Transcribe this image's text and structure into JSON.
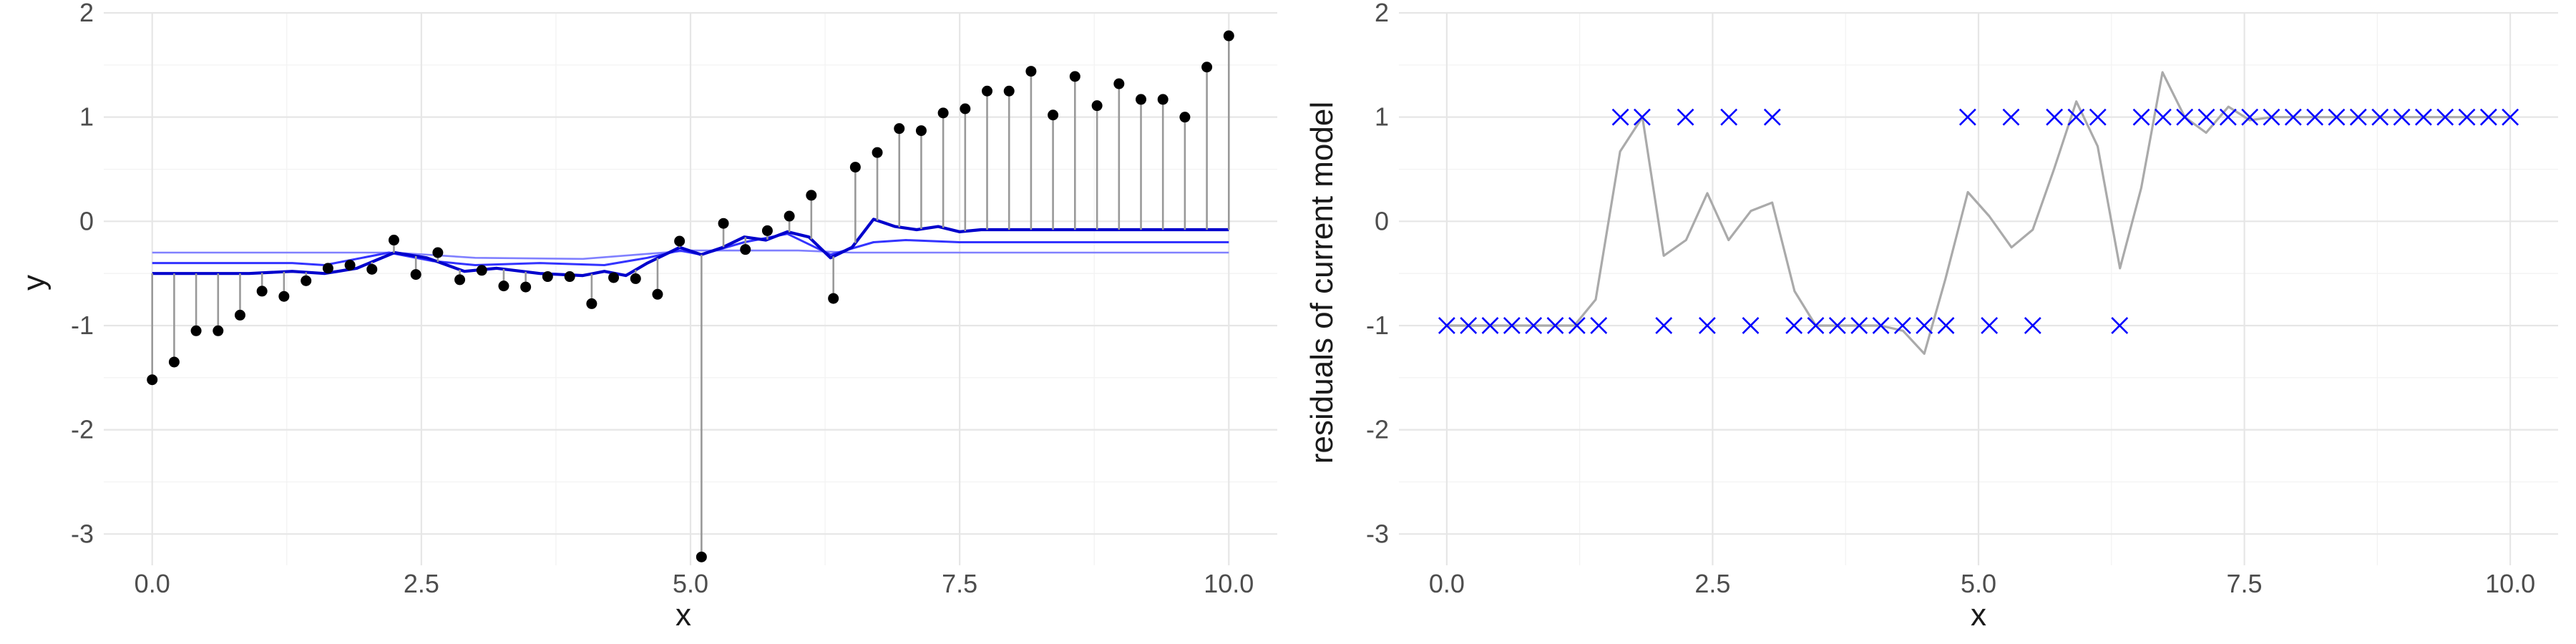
{
  "chart_data": [
    {
      "type": "scatter",
      "xlabel": "x",
      "ylabel": "y",
      "xlim": [
        0,
        10
      ],
      "ylim": [
        -3.3,
        2
      ],
      "x_ticks": [
        0,
        2.5,
        5,
        7.5,
        10
      ],
      "x_tick_labels": [
        "0.0",
        "2.5",
        "5.0",
        "7.5",
        "10.0"
      ],
      "y_ticks": [
        -3,
        -2,
        -1,
        0,
        1,
        2
      ],
      "y_tick_labels": [
        "-3",
        "-2",
        "-1",
        "0",
        "1",
        "2"
      ],
      "grid": true,
      "colors": {
        "points": "#000000",
        "segments": "#999999",
        "fit_dark": "#0000cc",
        "fit_mid": "#3333ff",
        "fit_light": "#8080ff"
      },
      "x": [
        0.0,
        0.204,
        0.408,
        0.612,
        0.816,
        1.02,
        1.224,
        1.429,
        1.633,
        1.837,
        2.041,
        2.245,
        2.449,
        2.653,
        2.857,
        3.061,
        3.265,
        3.469,
        3.673,
        3.878,
        4.082,
        4.286,
        4.49,
        4.694,
        4.898,
        5.102,
        5.306,
        5.51,
        5.714,
        5.918,
        6.122,
        6.327,
        6.531,
        6.735,
        6.939,
        7.143,
        7.347,
        7.551,
        7.755,
        7.959,
        8.163,
        8.367,
        8.571,
        8.776,
        8.98,
        9.184,
        9.388,
        9.592,
        9.796,
        10.0
      ],
      "y": [
        -1.52,
        -1.35,
        -1.05,
        -1.05,
        -0.9,
        -0.67,
        -0.72,
        -0.57,
        -0.45,
        -0.42,
        -0.46,
        -0.18,
        -0.51,
        -0.3,
        -0.56,
        -0.47,
        -0.62,
        -0.63,
        -0.53,
        -0.53,
        -0.79,
        -0.54,
        -0.55,
        -0.7,
        -0.19,
        -3.22,
        -0.02,
        -0.27,
        -0.09,
        0.05,
        0.25,
        -0.74,
        0.52,
        0.66,
        0.89,
        0.87,
        1.04,
        1.08,
        1.25,
        1.25,
        1.44,
        1.02,
        1.39,
        1.11,
        1.32,
        1.17,
        1.17,
        1.0,
        1.48,
        1.78
      ],
      "series": [
        {
          "name": "",
          "color": "#0000cc",
          "x": [
            0.0,
            0.9,
            1.3,
            1.6,
            1.9,
            2.25,
            2.55,
            2.9,
            3.2,
            3.6,
            4.0,
            4.2,
            4.4,
            4.6,
            4.9,
            5.1,
            5.3,
            5.5,
            5.7,
            5.9,
            6.1,
            6.3,
            6.5,
            6.7,
            6.9,
            7.1,
            7.3,
            7.5,
            7.7,
            8.0,
            8.5,
            9.0,
            10.0
          ],
          "y": [
            -0.5,
            -0.5,
            -0.48,
            -0.5,
            -0.45,
            -0.3,
            -0.35,
            -0.48,
            -0.45,
            -0.5,
            -0.52,
            -0.48,
            -0.52,
            -0.4,
            -0.25,
            -0.32,
            -0.25,
            -0.15,
            -0.18,
            -0.1,
            -0.15,
            -0.35,
            -0.25,
            0.02,
            -0.05,
            -0.08,
            -0.05,
            -0.1,
            -0.08,
            -0.08,
            -0.08,
            -0.08,
            -0.08
          ]
        },
        {
          "name": "",
          "color": "#3333ff",
          "x": [
            0.0,
            1.3,
            1.6,
            2.2,
            2.6,
            3.0,
            3.6,
            4.2,
            4.6,
            4.9,
            5.1,
            5.5,
            5.9,
            6.3,
            6.7,
            7.0,
            7.5,
            8.0,
            10.0
          ],
          "y": [
            -0.4,
            -0.4,
            -0.42,
            -0.3,
            -0.38,
            -0.42,
            -0.4,
            -0.42,
            -0.35,
            -0.28,
            -0.32,
            -0.2,
            -0.12,
            -0.32,
            -0.2,
            -0.18,
            -0.2,
            -0.2,
            -0.2
          ]
        },
        {
          "name": "",
          "color": "#8080ff",
          "x": [
            0.0,
            1.5,
            2.25,
            3.0,
            4.0,
            4.5,
            5.0,
            5.5,
            6.0,
            6.5,
            7.0,
            7.5,
            10.0
          ],
          "y": [
            -0.3,
            -0.3,
            -0.3,
            -0.35,
            -0.36,
            -0.32,
            -0.28,
            -0.28,
            -0.28,
            -0.3,
            -0.3,
            -0.3,
            -0.3
          ]
        }
      ]
    },
    {
      "type": "scatter",
      "xlabel": "x",
      "ylabel": "residuals of current model",
      "xlim": [
        0,
        10
      ],
      "ylim": [
        -3.3,
        2
      ],
      "x_ticks": [
        0,
        2.5,
        5,
        7.5,
        10
      ],
      "x_tick_labels": [
        "0.0",
        "2.5",
        "5.0",
        "7.5",
        "10.0"
      ],
      "y_ticks": [
        -3,
        -2,
        -1,
        0,
        1,
        2
      ],
      "y_tick_labels": [
        "-3",
        "-2",
        "-1",
        "0",
        "1",
        "2"
      ],
      "grid": true,
      "colors": {
        "markers": "#0000ff",
        "line": "#aaaaaa"
      },
      "x": [
        0.0,
        0.204,
        0.408,
        0.612,
        0.816,
        1.02,
        1.224,
        1.429,
        1.633,
        1.837,
        2.041,
        2.245,
        2.449,
        2.653,
        2.857,
        3.061,
        3.265,
        3.469,
        3.673,
        3.878,
        4.082,
        4.286,
        4.49,
        4.694,
        4.898,
        5.102,
        5.306,
        5.51,
        5.714,
        5.918,
        6.122,
        6.327,
        6.531,
        6.735,
        6.939,
        7.143,
        7.347,
        7.551,
        7.755,
        7.959,
        8.163,
        8.367,
        8.571,
        8.776,
        8.98,
        9.184,
        9.388,
        9.592,
        9.796,
        10.0
      ],
      "y": [
        -1,
        -1,
        -1,
        -1,
        -1,
        -1,
        -1,
        -1,
        1,
        1,
        -1,
        1,
        -1,
        1,
        -1,
        1,
        -1,
        -1,
        -1,
        -1,
        -1,
        -1,
        -1,
        -1,
        1,
        -1,
        1,
        -1,
        1,
        1,
        1,
        -1,
        1,
        1,
        1,
        1,
        1,
        1,
        1,
        1,
        1,
        1,
        1,
        1,
        1,
        1,
        1,
        1,
        1,
        1
      ],
      "series": [
        {
          "name": "",
          "color": "#aaaaaa",
          "x": [
            0.0,
            0.2,
            0.4,
            0.6,
            0.8,
            1.0,
            1.2,
            1.4,
            1.63,
            1.84,
            2.04,
            2.25,
            2.45,
            2.65,
            2.86,
            3.06,
            3.27,
            3.47,
            3.67,
            3.88,
            4.08,
            4.29,
            4.49,
            4.69,
            4.9,
            5.1,
            5.31,
            5.51,
            5.71,
            5.92,
            6.12,
            6.33,
            6.53,
            6.73,
            6.94,
            7.14,
            7.35,
            7.55,
            7.76,
            7.96,
            8.5,
            9.0,
            10.0
          ],
          "y": [
            -1.0,
            -1.0,
            -1.0,
            -1.0,
            -1.0,
            -1.0,
            -1.0,
            -0.75,
            0.67,
            1.0,
            -0.33,
            -0.18,
            0.27,
            -0.18,
            0.1,
            0.18,
            -0.67,
            -1.0,
            -1.0,
            -1.0,
            -1.0,
            -1.05,
            -1.27,
            -0.55,
            0.28,
            0.05,
            -0.25,
            -0.08,
            0.5,
            1.15,
            0.72,
            -0.45,
            0.32,
            1.43,
            1.0,
            0.85,
            1.1,
            0.97,
            1.0,
            1.0,
            1.0,
            1.0,
            1.0
          ]
        }
      ]
    }
  ]
}
